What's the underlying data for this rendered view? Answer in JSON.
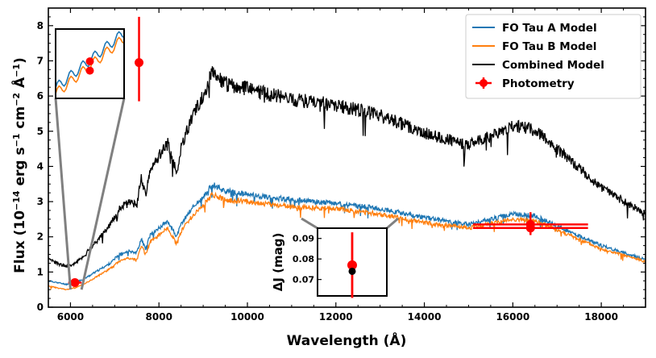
{
  "chart_data": {
    "type": "line",
    "xlabel": "Wavelength (Å)",
    "ylabel_main": "Flux (10",
    "ylabel_exp1": "−14",
    "ylabel_mid": " erg s",
    "ylabel_exp2": "−1",
    "ylabel_mid2": " cm",
    "ylabel_exp3": "−2",
    "ylabel_mid3": " Å",
    "ylabel_exp4": "−1",
    "ylabel_end": ")",
    "xlim": [
      5500,
      19000
    ],
    "ylim": [
      0,
      8.5
    ],
    "xticks": [
      6000,
      8000,
      10000,
      12000,
      14000,
      16000,
      18000
    ],
    "xtick_labels": [
      "6000",
      "8000",
      "10000",
      "12000",
      "14000",
      "16000",
      "18000"
    ],
    "yticks": [
      0,
      1,
      2,
      3,
      4,
      5,
      6,
      7,
      8
    ],
    "ytick_labels": [
      "0",
      "1",
      "2",
      "3",
      "4",
      "5",
      "6",
      "7",
      "8"
    ],
    "legend": [
      {
        "label": "FO Tau A Model",
        "color": "#1f77b4",
        "kind": "line"
      },
      {
        "label": "FO Tau B Model",
        "color": "#ff7f0e",
        "kind": "line"
      },
      {
        "label": "Combined Model",
        "color": "#000000",
        "kind": "line"
      },
      {
        "label": "Photometry",
        "color": "#ff0000",
        "kind": "errorbar"
      }
    ],
    "series": [
      {
        "name": "FO Tau A Model",
        "color": "#1f77b4",
        "x": [
          5500,
          5700,
          5900,
          6100,
          6300,
          6500,
          6700,
          6900,
          7100,
          7300,
          7500,
          7600,
          7700,
          7800,
          8000,
          8200,
          8400,
          8500,
          8600,
          8800,
          9000,
          9200,
          9500,
          10000,
          11000,
          12000,
          13000,
          14000,
          15000,
          16000,
          16500,
          17000,
          18000,
          19000
        ],
        "y": [
          0.75,
          0.7,
          0.65,
          0.7,
          0.8,
          0.95,
          1.1,
          1.25,
          1.5,
          1.6,
          1.55,
          1.95,
          1.65,
          2.05,
          2.25,
          2.45,
          2.0,
          2.35,
          2.55,
          2.9,
          3.1,
          3.5,
          3.3,
          3.2,
          3.05,
          2.95,
          2.8,
          2.55,
          2.35,
          2.65,
          2.6,
          2.3,
          1.75,
          1.35
        ]
      },
      {
        "name": "FO Tau B Model",
        "color": "#ff7f0e",
        "x": [
          5500,
          5700,
          5900,
          6100,
          6300,
          6500,
          6700,
          6900,
          7100,
          7300,
          7500,
          7600,
          7700,
          7800,
          8000,
          8200,
          8400,
          8500,
          8600,
          8800,
          9000,
          9200,
          9500,
          10000,
          11000,
          12000,
          13000,
          14000,
          15000,
          16000,
          16500,
          17000,
          18000,
          19000
        ],
        "y": [
          0.6,
          0.55,
          0.5,
          0.55,
          0.65,
          0.8,
          0.95,
          1.1,
          1.3,
          1.4,
          1.35,
          1.75,
          1.5,
          1.85,
          2.05,
          2.25,
          1.8,
          2.15,
          2.35,
          2.65,
          2.9,
          3.2,
          3.05,
          3.0,
          2.85,
          2.8,
          2.65,
          2.4,
          2.25,
          2.5,
          2.45,
          2.2,
          1.65,
          1.3
        ]
      },
      {
        "name": "Combined Model",
        "color": "#000000",
        "x": [
          5500,
          5700,
          5900,
          6100,
          6300,
          6500,
          6700,
          6900,
          7100,
          7300,
          7500,
          7600,
          7700,
          7800,
          8000,
          8200,
          8400,
          8500,
          8600,
          8800,
          9000,
          9200,
          9500,
          10000,
          11000,
          12000,
          13000,
          14000,
          15000,
          16000,
          16500,
          17000,
          18000,
          19000
        ],
        "y": [
          1.35,
          1.25,
          1.15,
          1.25,
          1.45,
          1.75,
          2.05,
          2.35,
          2.8,
          3.0,
          2.9,
          3.7,
          3.15,
          3.9,
          4.3,
          4.7,
          3.8,
          4.5,
          4.9,
          5.55,
          6.0,
          6.7,
          6.35,
          6.2,
          5.9,
          5.75,
          5.45,
          4.95,
          4.6,
          5.15,
          5.05,
          4.5,
          3.4,
          2.65
        ]
      }
    ],
    "photometry": [
      {
        "x": 6100,
        "y": 0.7,
        "xerr": 150,
        "yerr_low": 0.1,
        "yerr_high": 0.1
      },
      {
        "x": 7550,
        "y": 6.95,
        "xerr": 0,
        "yerr_low": 1.1,
        "yerr_high": 1.3
      },
      {
        "x": 16400,
        "y": 2.35,
        "xerr": 1300,
        "yerr_low": 0.25,
        "yerr_high": 0.35
      },
      {
        "x": 16400,
        "y": 2.25,
        "xerr": 1300,
        "yerr_low": 0.2,
        "yerr_high": 0.25
      }
    ],
    "inset_zoom": {
      "xlim": [
        5900,
        6300
      ],
      "ylim": [
        0.0,
        3.0
      ],
      "photometry_points": [
        {
          "x": 6100,
          "y": 1.6,
          "yerr": 0.15
        },
        {
          "x": 6100,
          "y": 1.2,
          "yerr": 0.15
        }
      ]
    },
    "inset_deltaJ": {
      "ylabel": "ΔJ (mag)",
      "ylim": [
        0.062,
        0.095
      ],
      "yticks": [
        0.07,
        0.08,
        0.09
      ],
      "ytick_labels": [
        "0.07",
        "0.08",
        "0.09"
      ],
      "photometry": {
        "value": 0.077,
        "err_low": 0.016,
        "err_high": 0.016
      },
      "model": {
        "value": 0.074
      }
    }
  }
}
